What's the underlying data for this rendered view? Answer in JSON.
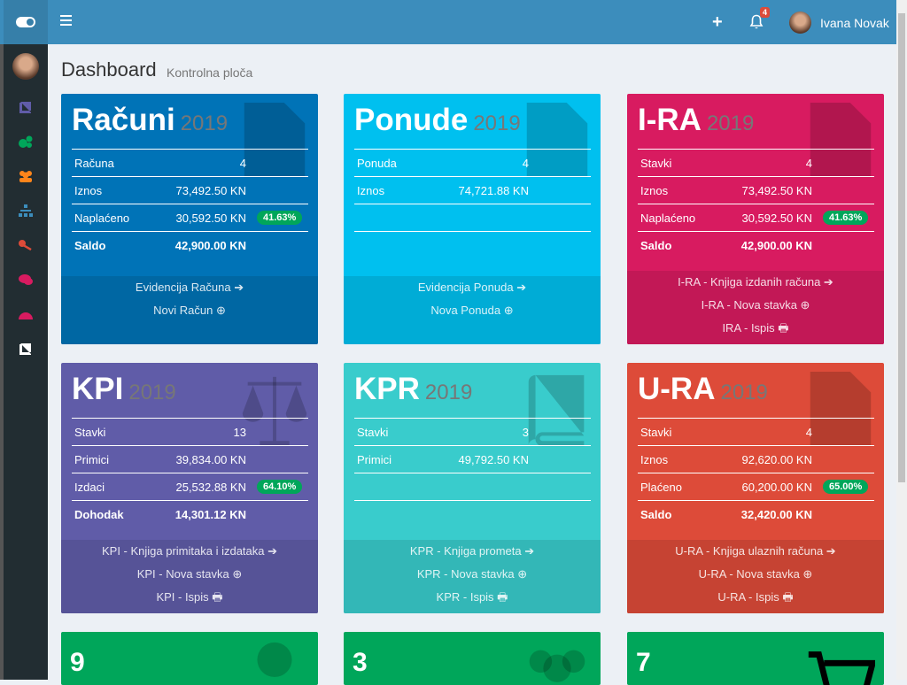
{
  "header": {
    "notifications": "4",
    "user": "Ivana Novak"
  },
  "page": {
    "title": "Dashboard",
    "subtitle": "Kontrolna ploča"
  },
  "sidebar": {
    "items": [
      {
        "icon": "book-icon",
        "color": "#605ca8"
      },
      {
        "icon": "cogs-icon",
        "color": "#00a65a"
      },
      {
        "icon": "users-icon",
        "color": "#ff851b"
      },
      {
        "icon": "sitemap-icon",
        "color": "#3c8dbc"
      },
      {
        "icon": "key-icon",
        "color": "#dd4b39"
      },
      {
        "icon": "comments-icon",
        "color": "#d81b60"
      },
      {
        "icon": "dashboard-icon",
        "color": "#d81b60"
      },
      {
        "icon": "book-icon",
        "color": "#ffffff"
      }
    ]
  },
  "cards": [
    {
      "title": "Računi",
      "year": "2019",
      "color": "#0073b7",
      "foot_color": "#0067a3",
      "icon": "file-icon",
      "rows": [
        {
          "label": "Računa",
          "value": "4"
        },
        {
          "label": "Iznos",
          "value": "73,492.50 KN"
        },
        {
          "label": "Naplaćeno",
          "value": "30,592.50 KN",
          "badge": "41.63%"
        },
        {
          "label": "Saldo",
          "value": "42,900.00 KN",
          "bold": true
        }
      ],
      "links": [
        "Evidencija Računa ➔",
        "Novi Račun ⊕"
      ]
    },
    {
      "title": "Ponude",
      "year": "2019",
      "color": "#00c0ef",
      "foot_color": "#00acd6",
      "icon": "file-icon",
      "rows": [
        {
          "label": "Ponuda",
          "value": "4"
        },
        {
          "label": "Iznos",
          "value": "74,721.88 KN"
        },
        {
          "label": "",
          "value": ""
        }
      ],
      "links": [
        "Evidencija Ponuda ➔",
        "Nova Ponuda ⊕"
      ]
    },
    {
      "title": "I-RA",
      "year": "2019",
      "color": "#d81b60",
      "foot_color": "#c21856",
      "icon": "file-icon",
      "rows": [
        {
          "label": "Stavki",
          "value": "4"
        },
        {
          "label": "Iznos",
          "value": "73,492.50 KN"
        },
        {
          "label": "Naplaćeno",
          "value": "30,592.50 KN",
          "badge": "41.63%"
        },
        {
          "label": "Saldo",
          "value": "42,900.00 KN",
          "bold": true
        }
      ],
      "links": [
        "I-RA - Knjiga izdanih računa ➔",
        "I-RA - Nova stavka ⊕",
        "IRA - Ispis 🖶"
      ]
    },
    {
      "title": "KPI",
      "year": "2019",
      "color": "#605ca8",
      "foot_color": "#565397",
      "icon": "balance-scale-icon",
      "rows": [
        {
          "label": "Stavki",
          "value": "13"
        },
        {
          "label": "Primici",
          "value": "39,834.00 KN"
        },
        {
          "label": "Izdaci",
          "value": "25,532.88 KN",
          "badge": "64.10%"
        },
        {
          "label": "Dohodak",
          "value": "14,301.12 KN",
          "bold": true
        }
      ],
      "links": [
        "KPI - Knjiga primitaka i izdataka ➔",
        "KPI - Nova stavka ⊕",
        "KPI - Ispis 🖶"
      ]
    },
    {
      "title": "KPR",
      "year": "2019",
      "color": "#39cccc",
      "foot_color": "#33b7b7",
      "icon": "book-icon",
      "rows": [
        {
          "label": "Stavki",
          "value": "3"
        },
        {
          "label": "Primici",
          "value": "49,792.50 KN"
        },
        {
          "label": "",
          "value": ""
        }
      ],
      "links": [
        "KPR - Knjiga prometa ➔",
        "KPR - Nova stavka ⊕",
        "KPR - Ispis 🖶"
      ]
    },
    {
      "title": "U-RA",
      "year": "2019",
      "color": "#dd4b39",
      "foot_color": "#c64333",
      "icon": "file-icon",
      "rows": [
        {
          "label": "Stavki",
          "value": "4"
        },
        {
          "label": "Iznos",
          "value": "92,620.00 KN"
        },
        {
          "label": "Plaćeno",
          "value": "60,200.00 KN",
          "badge": "65.00%"
        },
        {
          "label": "Saldo",
          "value": "32,420.00 KN",
          "bold": true
        }
      ],
      "links": [
        "U-RA - Knjiga ulaznih računa ➔",
        "U-RA - Nova stavka ⊕",
        "U-RA - Ispis 🖶"
      ]
    }
  ],
  "small_cards": [
    {
      "value": "9",
      "icon": "user-icon",
      "color": "#00a65a"
    },
    {
      "value": "3",
      "icon": "users-icon",
      "color": "#00a65a"
    },
    {
      "value": "7",
      "icon": "shopping-cart-icon",
      "color": "#00a65a"
    }
  ]
}
